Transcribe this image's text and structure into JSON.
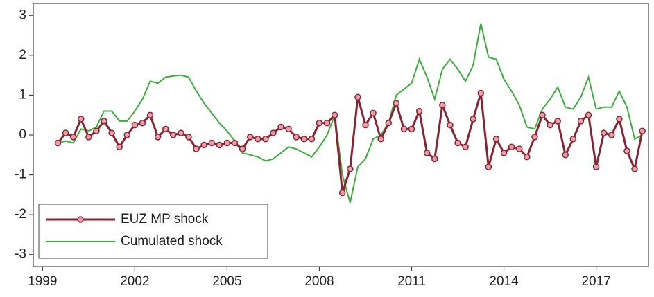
{
  "chart_data": {
    "type": "line",
    "x": [
      1999.5,
      1999.75,
      2000,
      2000.25,
      2000.5,
      2000.75,
      2001,
      2001.25,
      2001.5,
      2001.75,
      2002,
      2002.25,
      2002.5,
      2002.75,
      2003,
      2003.25,
      2003.5,
      2003.75,
      2004,
      2004.25,
      2004.5,
      2004.75,
      2005,
      2005.25,
      2005.5,
      2005.75,
      2006,
      2006.25,
      2006.5,
      2006.75,
      2007,
      2007.25,
      2007.5,
      2007.75,
      2008,
      2008.25,
      2008.5,
      2008.75,
      2009,
      2009.25,
      2009.5,
      2009.75,
      2010,
      2010.25,
      2010.5,
      2010.75,
      2011,
      2011.25,
      2011.5,
      2011.75,
      2012,
      2012.25,
      2012.5,
      2012.75,
      2013,
      2013.25,
      2013.5,
      2013.75,
      2014,
      2014.25,
      2014.5,
      2014.75,
      2015,
      2015.25,
      2015.5,
      2015.75,
      2016,
      2016.25,
      2016.5,
      2016.75,
      2017,
      2017.25,
      2017.5,
      2017.75,
      2018,
      2018.25,
      2018.5
    ],
    "series": [
      {
        "name": "EUZ MP shock",
        "color": "#8b2232",
        "marker": true,
        "values": [
          -0.2,
          0.05,
          -0.05,
          0.4,
          -0.05,
          0.1,
          0.35,
          0.05,
          -0.3,
          0.0,
          0.25,
          0.3,
          0.5,
          -0.05,
          0.15,
          0.0,
          0.05,
          -0.05,
          -0.35,
          -0.25,
          -0.2,
          -0.25,
          -0.2,
          -0.2,
          -0.35,
          -0.05,
          -0.1,
          -0.1,
          0.05,
          0.2,
          0.15,
          -0.05,
          -0.1,
          -0.1,
          0.3,
          0.3,
          0.5,
          -1.45,
          -0.85,
          0.95,
          0.25,
          0.55,
          -0.1,
          0.3,
          0.8,
          0.15,
          0.15,
          0.6,
          -0.45,
          -0.6,
          0.75,
          0.25,
          -0.2,
          -0.3,
          0.4,
          1.05,
          -0.8,
          -0.1,
          -0.45,
          -0.3,
          -0.35,
          -0.55,
          -0.05,
          0.5,
          0.25,
          0.35,
          -0.5,
          -0.1,
          0.35,
          0.5,
          -0.8,
          0.05,
          0.0,
          0.4,
          -0.4,
          -0.85,
          0.1
        ]
      },
      {
        "name": "Cumulated shock",
        "color": "#3aae3a",
        "marker": false,
        "values": [
          -0.2,
          -0.15,
          -0.2,
          0.15,
          0.1,
          0.2,
          0.6,
          0.6,
          0.35,
          0.35,
          0.6,
          0.9,
          1.35,
          1.3,
          1.45,
          1.48,
          1.5,
          1.45,
          1.1,
          0.8,
          0.55,
          0.3,
          0.1,
          -0.15,
          -0.45,
          -0.5,
          -0.55,
          -0.65,
          -0.6,
          -0.45,
          -0.3,
          -0.35,
          -0.45,
          -0.55,
          -0.3,
          0.0,
          0.5,
          -1.0,
          -1.7,
          -0.8,
          -0.6,
          -0.1,
          0.0,
          0.3,
          1.0,
          1.15,
          1.3,
          1.9,
          1.45,
          0.9,
          1.65,
          1.9,
          1.65,
          1.35,
          1.75,
          2.8,
          1.95,
          1.9,
          1.4,
          1.1,
          0.75,
          0.2,
          0.15,
          0.65,
          0.9,
          1.2,
          0.7,
          0.65,
          0.95,
          1.45,
          0.65,
          0.7,
          0.7,
          1.1,
          0.7,
          -0.1,
          0.0
        ]
      }
    ],
    "xlim": [
      1998.7,
      2018.7
    ],
    "ylim": [
      -3.3,
      3.3
    ],
    "xticks": [
      1999,
      2002,
      2005,
      2008,
      2011,
      2014,
      2017
    ],
    "yticks": [
      -3,
      -2,
      -1,
      0,
      1,
      2,
      3
    ],
    "grid": false,
    "legend": "lower-left"
  }
}
